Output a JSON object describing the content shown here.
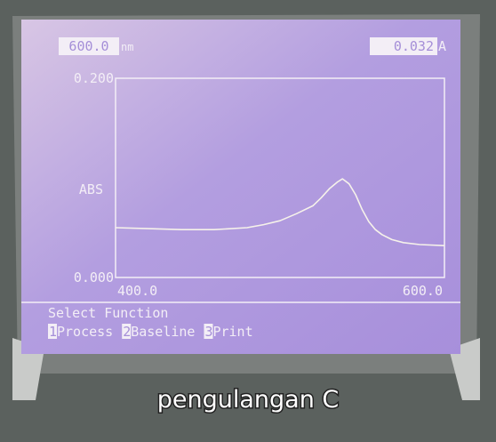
{
  "header": {
    "wavelength": "600.0",
    "wavelength_unit": "nm",
    "reading": "0.032",
    "reading_unit": "A"
  },
  "chart_data": {
    "type": "line",
    "y_label": "ABS",
    "x": [
      400,
      420,
      440,
      460,
      480,
      490,
      500,
      510,
      520,
      525,
      530,
      535,
      538,
      542,
      546,
      550,
      554,
      558,
      562,
      568,
      575,
      585,
      600
    ],
    "values": [
      0.05,
      0.049,
      0.048,
      0.048,
      0.05,
      0.053,
      0.057,
      0.064,
      0.072,
      0.08,
      0.089,
      0.096,
      0.099,
      0.094,
      0.083,
      0.068,
      0.056,
      0.048,
      0.043,
      0.038,
      0.035,
      0.033,
      0.032
    ],
    "color": "#f6f2ea",
    "xlim": [
      400,
      600
    ],
    "ylim": [
      0,
      0.2
    ],
    "xticks": [
      {
        "value": 400,
        "label": "400.0"
      },
      {
        "value": 600,
        "label": "600.0"
      }
    ],
    "yticks": [
      {
        "value": 0,
        "label": "0.000"
      },
      {
        "value": 0.2,
        "label": "0.200"
      }
    ]
  },
  "menu": {
    "title": "Select Function",
    "items": [
      {
        "key": "1",
        "label": "Process"
      },
      {
        "key": "2",
        "label": "Baseline"
      },
      {
        "key": "3",
        "label": "Print"
      }
    ]
  },
  "caption": "pengulangan C"
}
